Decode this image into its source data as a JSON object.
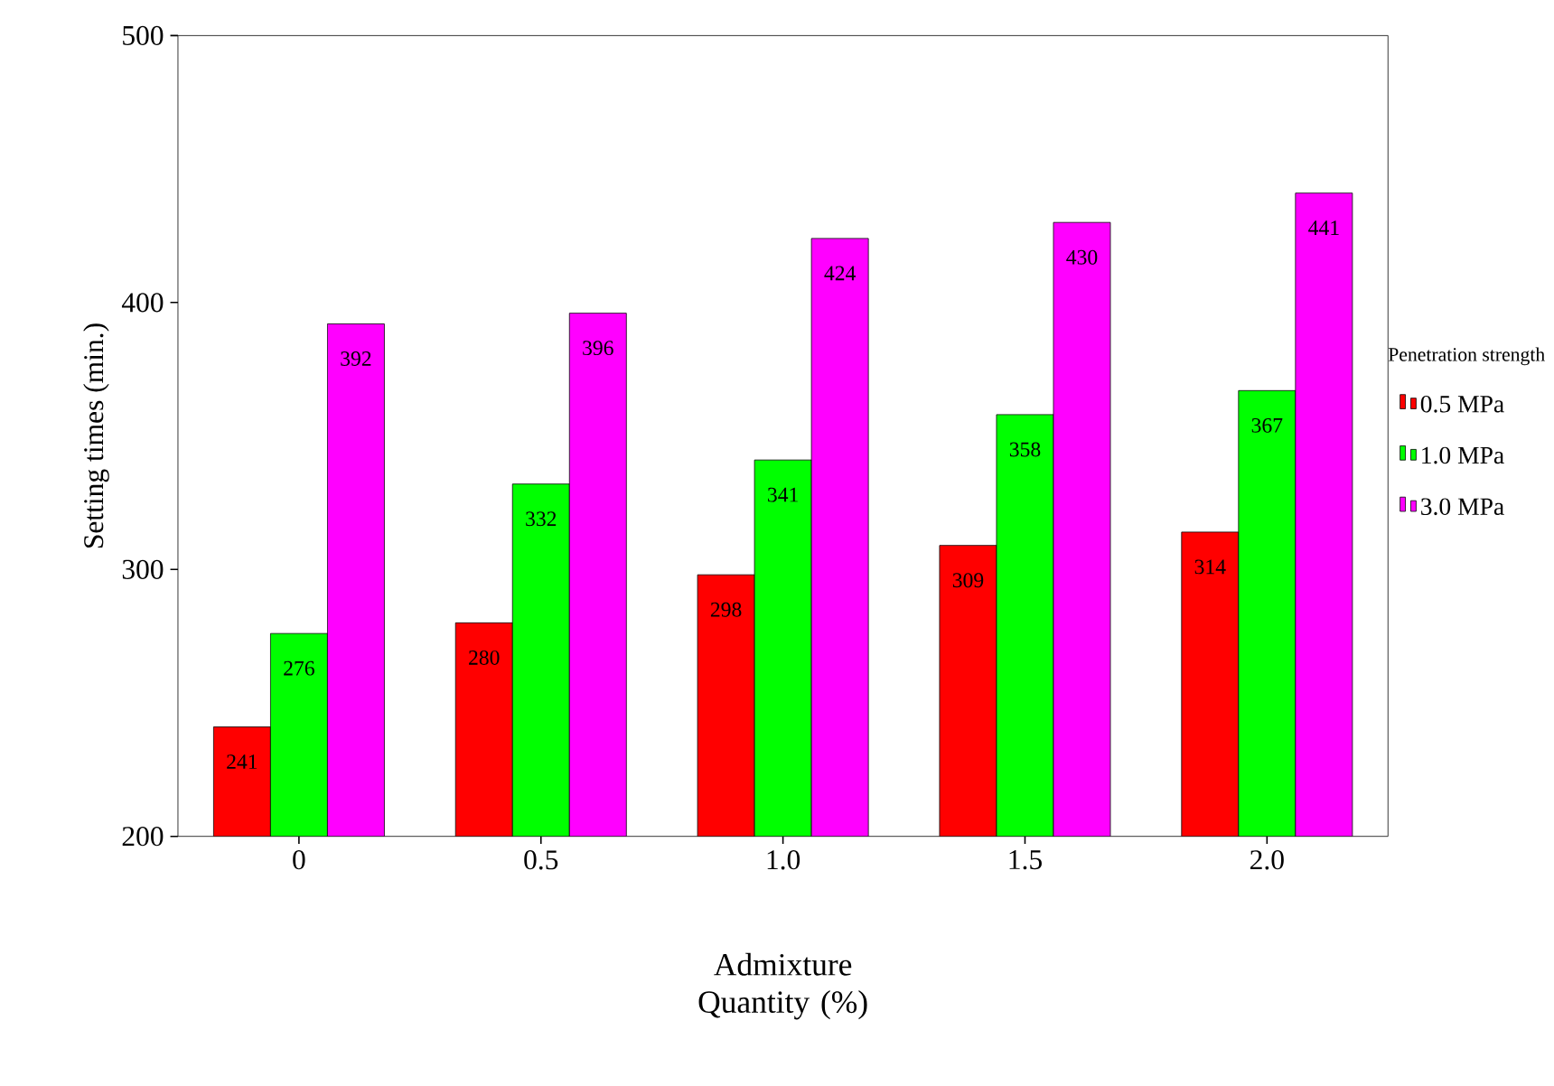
{
  "chart_data": {
    "type": "bar",
    "xlabel": "Admixture Quantity (%)",
    "ylabel": "Setting times (min.)",
    "legend_title": "Penetration strength",
    "categories": [
      "0",
      "0.5",
      "1.0",
      "1.5",
      "2.0"
    ],
    "series": [
      {
        "name": "0.5 MPa",
        "color": "#ff0000",
        "values": [
          241,
          280,
          298,
          309,
          314
        ]
      },
      {
        "name": "1.0 MPa",
        "color": "#00ff00",
        "values": [
          276,
          332,
          341,
          358,
          367
        ]
      },
      {
        "name": "3.0 MPa",
        "color": "#ff00ff",
        "values": [
          392,
          396,
          424,
          430,
          441
        ]
      }
    ],
    "ylim": [
      200,
      500
    ],
    "yticks": [
      200,
      300,
      400,
      500
    ],
    "data_labels": true,
    "legend": "right",
    "grid": false
  }
}
